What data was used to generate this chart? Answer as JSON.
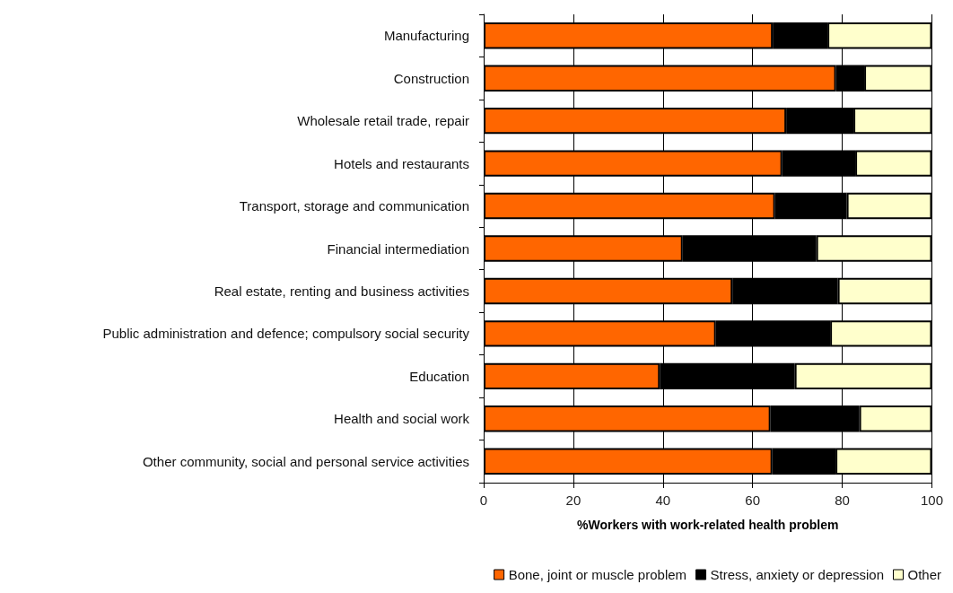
{
  "chart_data": {
    "type": "bar",
    "orientation": "horizontal",
    "stacked": true,
    "xlabel": "%Workers with work-related health problem",
    "categories": [
      "Manufacturing",
      "Construction",
      "Wholesale retail trade, repair",
      "Hotels and restaurants",
      "Transport, storage and communication",
      "Financial intermediation",
      "Real estate, renting and business activities",
      "Public administration and defence; compulsory social security",
      "Education",
      "Health and social work",
      "Other community, social and personal service activities"
    ],
    "series": [
      {
        "name": "Bone, joint or muscle problem",
        "color": "#ff6600",
        "values": [
          64.5,
          78.6,
          67.5,
          66.6,
          65.0,
          44.4,
          55.5,
          51.8,
          39.3,
          64.0,
          64.4
        ]
      },
      {
        "name": "Stress, anxiety or depression",
        "color": "#000000",
        "values": [
          12.2,
          6.3,
          15.0,
          16.3,
          16.0,
          29.8,
          23.5,
          25.5,
          30.1,
          19.8,
          14.1
        ]
      },
      {
        "name": "Other",
        "color": "#ffffcc",
        "values": [
          23.3,
          15.1,
          17.5,
          17.1,
          19.0,
          25.8,
          21.0,
          22.7,
          30.6,
          16.2,
          21.5
        ]
      }
    ],
    "xlim": [
      0,
      100
    ],
    "xticks": [
      0,
      20,
      40,
      60,
      80,
      100
    ],
    "grid": "x",
    "legend": "bottom right"
  }
}
